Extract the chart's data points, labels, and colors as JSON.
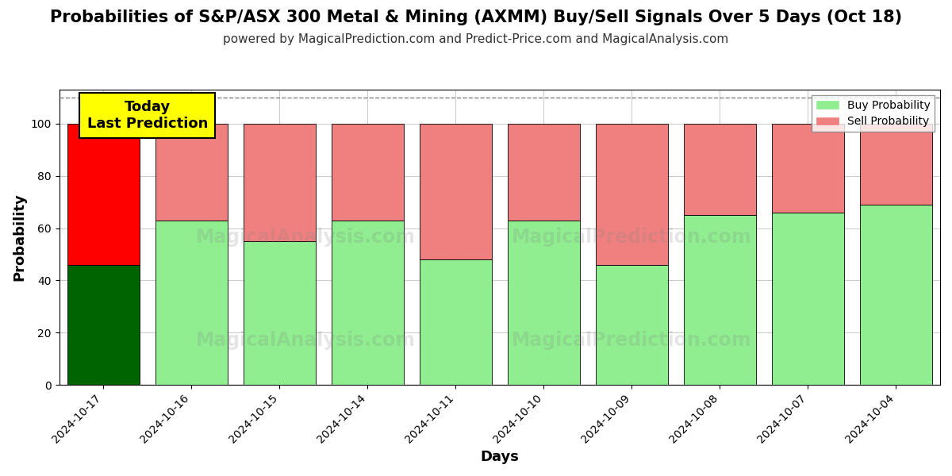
{
  "title": "Probabilities of S&P/ASX 300 Metal & Mining (AXMM) Buy/Sell Signals Over 5 Days (Oct 18)",
  "subtitle": "powered by MagicalPrediction.com and Predict-Price.com and MagicalAnalysis.com",
  "xlabel": "Days",
  "ylabel": "Probability",
  "categories": [
    "2024-10-17",
    "2024-10-16",
    "2024-10-15",
    "2024-10-14",
    "2024-10-11",
    "2024-10-10",
    "2024-10-09",
    "2024-10-08",
    "2024-10-07",
    "2024-10-04"
  ],
  "buy_values": [
    46,
    63,
    55,
    63,
    48,
    63,
    46,
    65,
    66,
    69
  ],
  "sell_values": [
    54,
    37,
    45,
    37,
    52,
    37,
    54,
    35,
    34,
    31
  ],
  "today_bar_buy_color": "#006400",
  "today_bar_sell_color": "#FF0000",
  "other_bar_buy_color": "#90EE90",
  "other_bar_sell_color": "#F08080",
  "legend_buy_color": "#90EE90",
  "legend_sell_color": "#F08080",
  "today_annotation_bg": "#FFFF00",
  "today_annotation_text": "Today\nLast Prediction",
  "ylim": [
    0,
    113
  ],
  "dashed_line_y": 110,
  "background_color": "#ffffff",
  "grid_color": "#cccccc",
  "title_fontsize": 15,
  "subtitle_fontsize": 11,
  "axis_label_fontsize": 13,
  "tick_fontsize": 10,
  "bar_width": 0.82,
  "legend_label_buy": "Buy Probability",
  "legend_label_sell": "Sell Probability"
}
